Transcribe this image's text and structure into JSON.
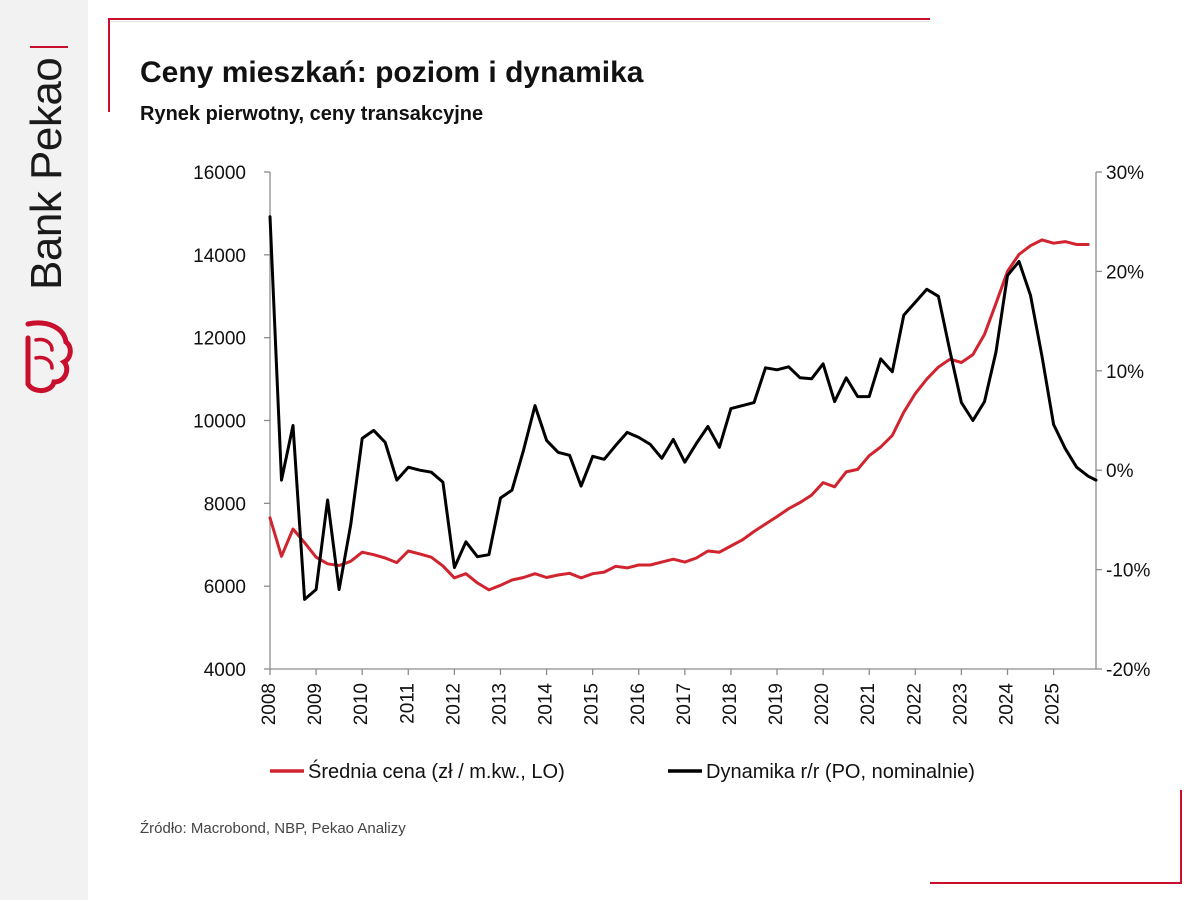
{
  "brand": {
    "name": "Bank Pekao"
  },
  "header": {
    "title": "Ceny mieszkań: poziom i dynamika",
    "subtitle": "Rynek pierwotny, ceny transakcyjne"
  },
  "footer": {
    "source": "Źródło: Macrobond, NBP, Pekao Analizy"
  },
  "colors": {
    "accent": "#c8102e",
    "price_line": "#d0242f",
    "yoy_line": "#000000"
  },
  "chart_data": {
    "type": "line",
    "title": "Ceny mieszkań: poziom i dynamika",
    "subtitle": "Rynek pierwotny, ceny transakcyjne",
    "xlabel": "",
    "ylabel_left": "",
    "ylabel_right": "",
    "x_range": [
      2008,
      2025.92
    ],
    "ylim_left": [
      4000,
      16000
    ],
    "ylim_right": [
      -20,
      30
    ],
    "x_ticks": [
      "2008",
      "2009",
      "2010",
      "2011",
      "2012",
      "2013",
      "2014",
      "2015",
      "2016",
      "2017",
      "2018",
      "2019",
      "2020",
      "2021",
      "2022",
      "2023",
      "2024",
      "2025"
    ],
    "y_ticks_left": [
      "4000",
      "6000",
      "8000",
      "10000",
      "12000",
      "14000",
      "16000"
    ],
    "y_ticks_right": [
      "-20%",
      "-10%",
      "0%",
      "10%",
      "20%",
      "30%"
    ],
    "legend_position": "bottom",
    "series": [
      {
        "name": "Średnia cena (zł / m.kw., LO)",
        "axis": "left",
        "color": "#d0242f",
        "x": [
          2008.0,
          2008.25,
          2008.5,
          2008.75,
          2009.0,
          2009.25,
          2009.5,
          2009.75,
          2010.0,
          2010.25,
          2010.5,
          2010.75,
          2011.0,
          2011.25,
          2011.5,
          2011.75,
          2012.0,
          2012.25,
          2012.5,
          2012.75,
          2013.0,
          2013.25,
          2013.5,
          2013.75,
          2014.0,
          2014.25,
          2014.5,
          2014.75,
          2015.0,
          2015.25,
          2015.5,
          2015.75,
          2016.0,
          2016.25,
          2016.5,
          2016.75,
          2017.0,
          2017.25,
          2017.5,
          2017.75,
          2018.0,
          2018.25,
          2018.5,
          2018.75,
          2019.0,
          2019.25,
          2019.5,
          2019.75,
          2020.0,
          2020.25,
          2020.5,
          2020.75,
          2021.0,
          2021.25,
          2021.5,
          2021.75,
          2022.0,
          2022.25,
          2022.5,
          2022.75,
          2023.0,
          2023.25,
          2023.5,
          2023.75,
          2024.0,
          2024.25,
          2024.5,
          2024.75,
          2025.0,
          2025.25,
          2025.5,
          2025.75
        ],
        "values": [
          7650,
          6720,
          7380,
          7050,
          6700,
          6540,
          6500,
          6600,
          6820,
          6760,
          6680,
          6570,
          6850,
          6780,
          6700,
          6490,
          6200,
          6300,
          6080,
          5910,
          6020,
          6150,
          6210,
          6300,
          6210,
          6270,
          6310,
          6200,
          6300,
          6340,
          6480,
          6440,
          6510,
          6510,
          6580,
          6650,
          6580,
          6680,
          6850,
          6820,
          6970,
          7120,
          7320,
          7500,
          7680,
          7870,
          8020,
          8200,
          8500,
          8400,
          8760,
          8820,
          9150,
          9360,
          9640,
          10200,
          10650,
          11000,
          11290,
          11480,
          11400,
          11590,
          12080,
          12830,
          13600,
          14010,
          14220,
          14360,
          14280,
          14320,
          14250,
          14250
        ]
      },
      {
        "name": "Dynamika r/r (PO, nominalnie)",
        "axis": "right",
        "color": "#000000",
        "x": [
          2008.0,
          2008.25,
          2008.5,
          2008.75,
          2009.0,
          2009.25,
          2009.5,
          2009.75,
          2010.0,
          2010.25,
          2010.5,
          2010.75,
          2011.0,
          2011.25,
          2011.5,
          2011.75,
          2012.0,
          2012.25,
          2012.5,
          2012.75,
          2013.0,
          2013.25,
          2013.5,
          2013.75,
          2014.0,
          2014.25,
          2014.5,
          2014.75,
          2015.0,
          2015.25,
          2015.5,
          2015.75,
          2016.0,
          2016.25,
          2016.5,
          2016.75,
          2017.0,
          2017.25,
          2017.5,
          2017.75,
          2018.0,
          2018.25,
          2018.5,
          2018.75,
          2019.0,
          2019.25,
          2019.5,
          2019.75,
          2020.0,
          2020.25,
          2020.5,
          2020.75,
          2021.0,
          2021.25,
          2021.5,
          2021.75,
          2022.0,
          2022.25,
          2022.5,
          2022.75,
          2023.0,
          2023.25,
          2023.5,
          2023.75,
          2024.0,
          2024.25,
          2024.5,
          2024.75,
          2025.0,
          2025.25,
          2025.5,
          2025.75,
          2025.92
        ],
        "values": [
          25.5,
          -1.0,
          4.5,
          -13.0,
          -12.0,
          -3.0,
          -12.0,
          -5.5,
          3.2,
          4.0,
          2.8,
          -1.0,
          0.3,
          0.0,
          -0.2,
          -1.2,
          -9.8,
          -7.2,
          -8.7,
          -8.5,
          -2.8,
          -2.0,
          2.0,
          6.5,
          3.0,
          1.8,
          1.5,
          -1.6,
          1.4,
          1.1,
          2.5,
          3.8,
          3.3,
          2.6,
          1.2,
          3.1,
          0.8,
          2.7,
          4.4,
          2.3,
          6.2,
          6.5,
          6.8,
          10.3,
          10.1,
          10.4,
          9.3,
          9.2,
          10.7,
          6.9,
          9.3,
          7.4,
          7.4,
          11.2,
          9.9,
          15.6,
          16.9,
          18.2,
          17.5,
          12.0,
          6.8,
          5.0,
          6.9,
          11.9,
          19.6,
          21.0,
          17.6,
          11.4,
          4.6,
          2.2,
          0.3,
          -0.6,
          -1.0
        ]
      }
    ]
  }
}
